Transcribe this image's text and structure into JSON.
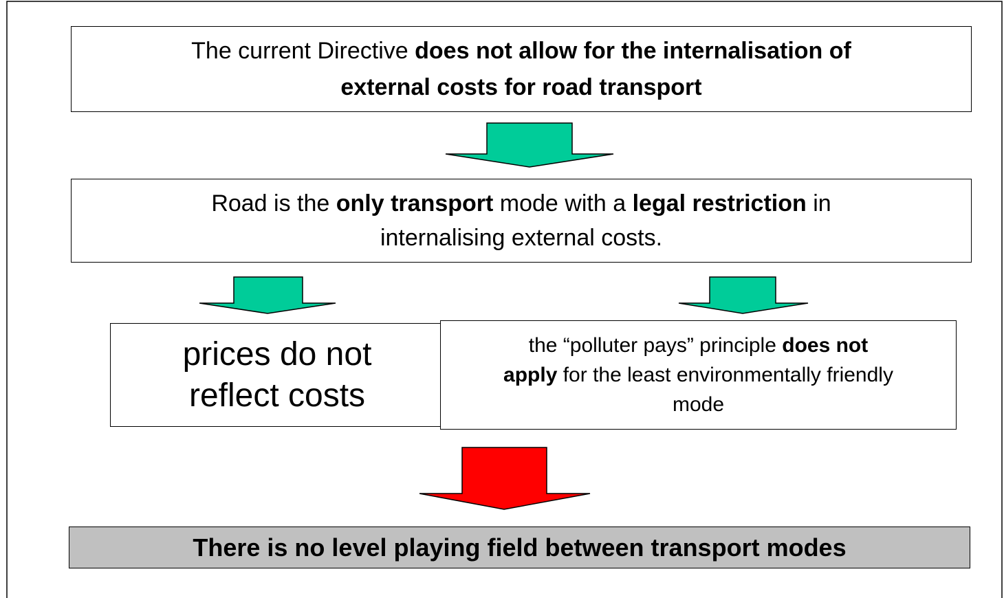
{
  "nodes": [
    {
      "lines": [
        [
          {
            "text": "The current Directive "
          },
          {
            "text": "does not allow for the internalisation of",
            "bold": true
          }
        ],
        [
          {
            "text": "external costs for road transport",
            "bold": true
          }
        ]
      ]
    },
    {
      "lines": [
        [
          {
            "text": "Road is the "
          },
          {
            "text": "only transport",
            "bold": true
          },
          {
            "text": " mode with a "
          },
          {
            "text": "legal restriction",
            "bold": true
          },
          {
            "text": " in"
          }
        ],
        [
          {
            "text": "internalising external costs."
          }
        ]
      ]
    },
    {
      "lines": [
        [
          {
            "text": "prices do not"
          }
        ],
        [
          {
            "text": "reflect costs"
          }
        ]
      ]
    },
    {
      "lines": [
        [
          {
            "text": "the “polluter pays” principle "
          },
          {
            "text": "does not",
            "bold": true
          }
        ],
        [
          {
            "text": "apply",
            "bold": true
          },
          {
            "text": " for the least environmentally friendly"
          }
        ],
        [
          {
            "text": "mode"
          }
        ]
      ]
    },
    {
      "lines": [
        [
          {
            "text": "There is no level playing field between transport modes",
            "bold": true
          }
        ]
      ]
    }
  ]
}
